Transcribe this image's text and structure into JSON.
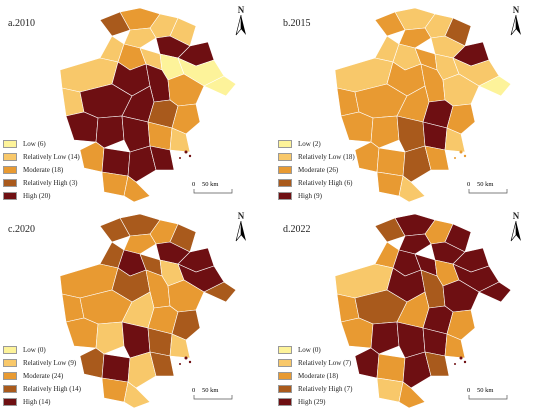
{
  "panels": [
    {
      "title": "a.2010",
      "north": "N",
      "legend": [
        {
          "label": "Low  (6)",
          "color": "#FDF39A"
        },
        {
          "label": "Relatively Low (14)",
          "color": "#F8C86A"
        },
        {
          "label": "Moderate  (18)",
          "color": "#E89A32"
        },
        {
          "label": "Relatively High  (3)",
          "color": "#A95A1C"
        },
        {
          "label": "High  (20)",
          "color": "#6E0F12"
        }
      ],
      "scale": {
        "zero": "0",
        "length": "50 km"
      }
    },
    {
      "title": "b.2015",
      "north": "N",
      "legend": [
        {
          "label": "Low (2)",
          "color": "#FDF39A"
        },
        {
          "label": "Relatively Low (18)",
          "color": "#F8C86A"
        },
        {
          "label": "Moderate (26)",
          "color": "#E89A32"
        },
        {
          "label": "Relatively High (6)",
          "color": "#A95A1C"
        },
        {
          "label": "High (9)",
          "color": "#6E0F12"
        }
      ],
      "scale": {
        "zero": "0",
        "length": "50 km"
      }
    },
    {
      "title": "c.2020",
      "north": "N",
      "legend": [
        {
          "label": "Low (0)",
          "color": "#FDF39A"
        },
        {
          "label": "Relatively Low (9)",
          "color": "#F8C86A"
        },
        {
          "label": "Moderate (24)",
          "color": "#E89A32"
        },
        {
          "label": "Relatively High (14)",
          "color": "#A95A1C"
        },
        {
          "label": "High (14)",
          "color": "#6E0F12"
        }
      ],
      "scale": {
        "zero": "0",
        "length": "50 km"
      }
    },
    {
      "title": "d.2022",
      "north": "N",
      "legend": [
        {
          "label": "Low (0)",
          "color": "#FDF39A"
        },
        {
          "label": "Relatively Low (7)",
          "color": "#F8C86A"
        },
        {
          "label": "Moderate (18)",
          "color": "#E89A32"
        },
        {
          "label": "Relatively High (7)",
          "color": "#A95A1C"
        },
        {
          "label": "High (29)",
          "color": "#6E0F12"
        }
      ],
      "scale": {
        "zero": "0",
        "length": "50 km"
      }
    }
  ]
}
